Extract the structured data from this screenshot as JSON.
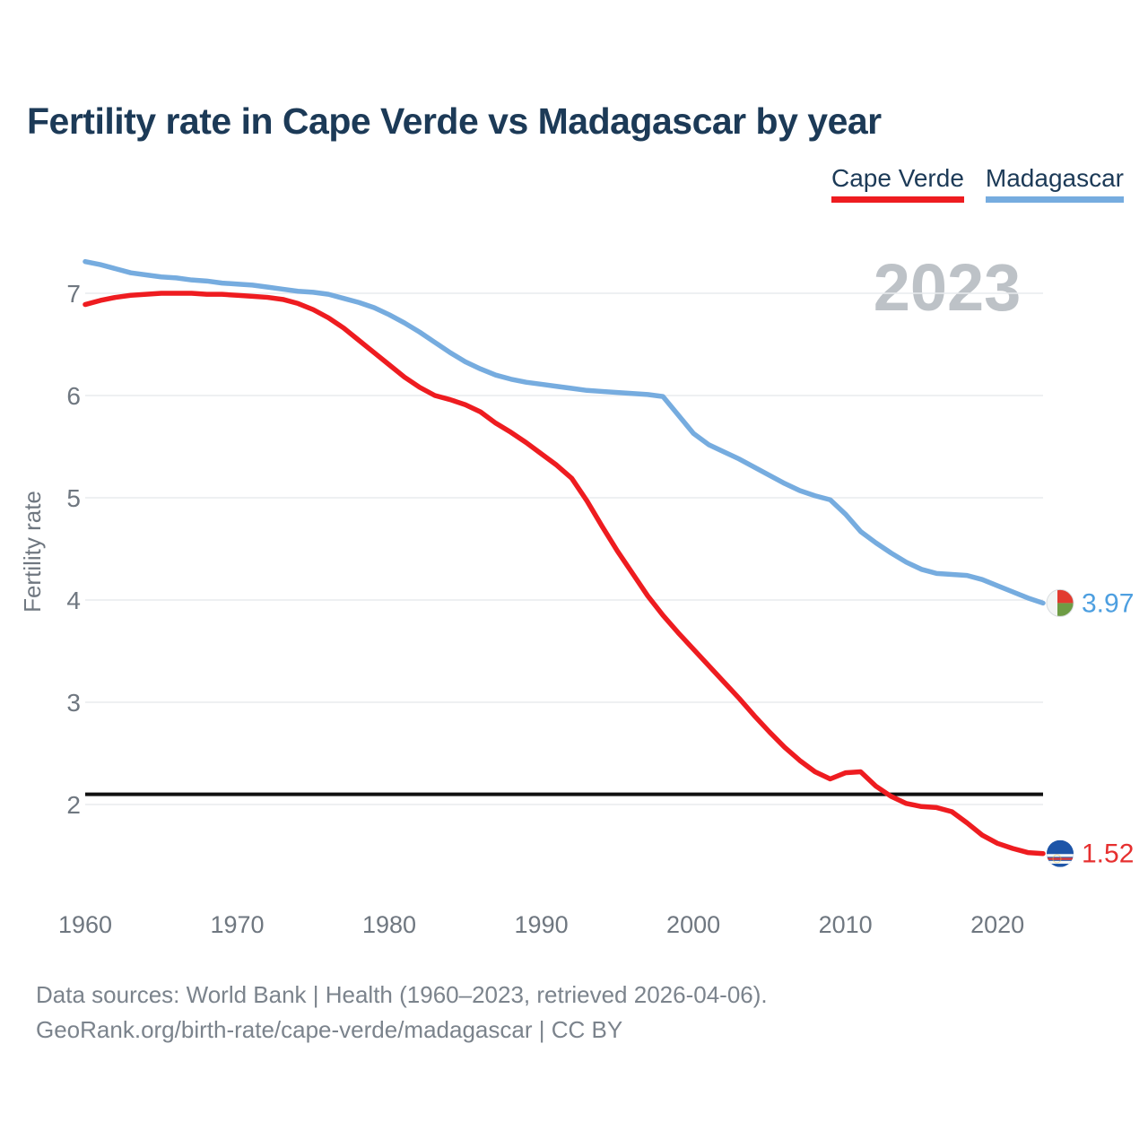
{
  "title": "Fertility rate in Cape Verde vs Madagascar by year",
  "watermark": "2023",
  "legend": {
    "items": [
      {
        "label": "Cape Verde"
      },
      {
        "label": "Madagascar"
      }
    ]
  },
  "source": {
    "line1": "Data sources: World Bank | Health (1960–2023, retrieved 2026-04-06).",
    "line2": "GeoRank.org/birth-rate/cape-verde/madagascar | CC BY"
  },
  "chart_data": {
    "type": "line",
    "title": "Fertility rate in Cape Verde vs Madagascar by year",
    "xlabel": "",
    "ylabel": "Fertility rate",
    "xlim": [
      1960,
      2023
    ],
    "ylim": [
      1.3,
      7.5
    ],
    "x_ticks": [
      1960,
      1970,
      1980,
      1990,
      2000,
      2010,
      2020
    ],
    "y_ticks": [
      2,
      3,
      4,
      5,
      6,
      7
    ],
    "grid": true,
    "legend_position": "top-right",
    "reference_line": {
      "value": 2.1,
      "color": "#111111"
    },
    "x": [
      1960,
      1961,
      1962,
      1963,
      1964,
      1965,
      1966,
      1967,
      1968,
      1969,
      1970,
      1971,
      1972,
      1973,
      1974,
      1975,
      1976,
      1977,
      1978,
      1979,
      1980,
      1981,
      1982,
      1983,
      1984,
      1985,
      1986,
      1987,
      1988,
      1989,
      1990,
      1991,
      1992,
      1993,
      1994,
      1995,
      1996,
      1997,
      1998,
      1999,
      2000,
      2001,
      2002,
      2003,
      2004,
      2005,
      2006,
      2007,
      2008,
      2009,
      2010,
      2011,
      2012,
      2013,
      2014,
      2015,
      2016,
      2017,
      2018,
      2019,
      2020,
      2021,
      2022,
      2023
    ],
    "series": [
      {
        "name": "Cape Verde",
        "color": "#ee1c20",
        "end_label": "1.52",
        "end_label_color": "#e62f2f",
        "values": [
          6.89,
          6.93,
          6.96,
          6.98,
          6.99,
          7.0,
          7.0,
          7.0,
          6.99,
          6.99,
          6.98,
          6.97,
          6.96,
          6.94,
          6.9,
          6.84,
          6.76,
          6.66,
          6.54,
          6.42,
          6.3,
          6.18,
          6.08,
          6.0,
          5.96,
          5.91,
          5.84,
          5.73,
          5.64,
          5.54,
          5.43,
          5.32,
          5.19,
          4.97,
          4.72,
          4.48,
          4.26,
          4.04,
          3.85,
          3.68,
          3.52,
          3.36,
          3.2,
          3.04,
          2.87,
          2.71,
          2.56,
          2.43,
          2.32,
          2.25,
          2.31,
          2.32,
          2.18,
          2.08,
          2.01,
          1.98,
          1.97,
          1.93,
          1.82,
          1.7,
          1.62,
          1.57,
          1.53,
          1.52
        ]
      },
      {
        "name": "Madagascar",
        "color": "#76acdf",
        "end_label": "3.97",
        "end_label_color": "#4d9fe0",
        "values": [
          7.31,
          7.28,
          7.24,
          7.2,
          7.18,
          7.16,
          7.15,
          7.13,
          7.12,
          7.1,
          7.09,
          7.08,
          7.06,
          7.04,
          7.02,
          7.01,
          6.99,
          6.95,
          6.91,
          6.86,
          6.79,
          6.71,
          6.62,
          6.52,
          6.42,
          6.33,
          6.26,
          6.2,
          6.16,
          6.13,
          6.11,
          6.09,
          6.07,
          6.05,
          6.04,
          6.03,
          6.02,
          6.01,
          5.99,
          5.81,
          5.63,
          5.52,
          5.45,
          5.38,
          5.3,
          5.22,
          5.14,
          5.07,
          5.02,
          4.98,
          4.84,
          4.67,
          4.56,
          4.46,
          4.37,
          4.3,
          4.26,
          4.25,
          4.24,
          4.2,
          4.14,
          4.08,
          4.02,
          3.97
        ]
      }
    ],
    "colors": {
      "title_text": "#1c3a57",
      "axis_text": "#6f7780",
      "gridline": "#e9ebee",
      "watermark": "#bdc2c7",
      "source_text": "#7b838c",
      "reference_line": "#111111"
    }
  }
}
